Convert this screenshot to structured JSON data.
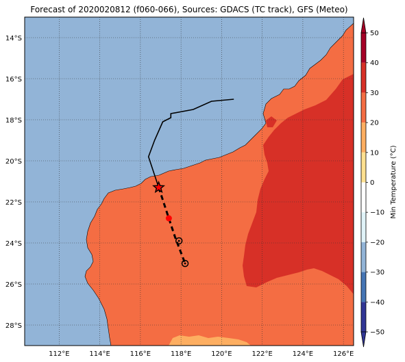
{
  "title": "Forecast of 2020020812 (f060-066), Sources: GDACS (TC track), GFS (Meteo)",
  "map": {
    "lon_range": [
      110.3,
      126.5
    ],
    "lat_range": [
      -29.0,
      -13.0
    ],
    "lon_ticks": [
      {
        "value": 112,
        "label": "112°E"
      },
      {
        "value": 114,
        "label": "114°E"
      },
      {
        "value": 116,
        "label": "116°E"
      },
      {
        "value": 118,
        "label": "118°E"
      },
      {
        "value": 120,
        "label": "120°E"
      },
      {
        "value": 122,
        "label": "122°E"
      },
      {
        "value": 124,
        "label": "124°E"
      },
      {
        "value": 126,
        "label": "126°E"
      }
    ],
    "lat_ticks": [
      {
        "value": -14,
        "label": "14°S"
      },
      {
        "value": -16,
        "label": "16°S"
      },
      {
        "value": -18,
        "label": "18°S"
      },
      {
        "value": -20,
        "label": "20°S"
      },
      {
        "value": -22,
        "label": "22°S"
      },
      {
        "value": -24,
        "label": "24°S"
      },
      {
        "value": -26,
        "label": "26°S"
      },
      {
        "value": -28,
        "label": "28°S"
      }
    ],
    "ocean_color": "#92b4d7",
    "land_color": "#f46d43",
    "hot_color": "#d73027",
    "cool_color": "#fdae61",
    "track_color": "#000000",
    "past_track": [
      [
        120.6,
        -17.0
      ],
      [
        119.5,
        -17.1
      ],
      [
        118.6,
        -17.5
      ],
      [
        117.5,
        -17.7
      ],
      [
        117.5,
        -17.9
      ],
      [
        117.1,
        -18.1
      ],
      [
        116.7,
        -19.0
      ],
      [
        116.4,
        -19.8
      ],
      [
        116.9,
        -21.3
      ]
    ],
    "forecast_track": [
      [
        116.9,
        -21.3
      ],
      [
        117.3,
        -22.5
      ],
      [
        117.7,
        -23.7
      ],
      [
        118.2,
        -25.0
      ]
    ],
    "current_position": [
      116.9,
      -21.3
    ],
    "forecast_points": [
      {
        "lon": 117.4,
        "lat": -22.8,
        "color": "#ff0000",
        "kind": "dot"
      },
      {
        "lon": 117.9,
        "lat": -23.9,
        "color": "#000000",
        "kind": "ring"
      },
      {
        "lon": 118.2,
        "lat": -25.0,
        "color": "#000000",
        "kind": "ring"
      }
    ]
  },
  "colorbar": {
    "label": "Min Temperature (°C)",
    "min": -50,
    "max": 50,
    "ticks": [
      "50",
      "40",
      "30",
      "20",
      "10",
      "0",
      "−10",
      "−20",
      "−30",
      "−40",
      "−50"
    ],
    "bands": [
      {
        "from": 40,
        "to": 50,
        "color": "#a50026"
      },
      {
        "from": 30,
        "to": 40,
        "color": "#d73027"
      },
      {
        "from": 20,
        "to": 30,
        "color": "#f46d43"
      },
      {
        "from": 10,
        "to": 20,
        "color": "#fdae61"
      },
      {
        "from": 0,
        "to": 10,
        "color": "#fee090"
      },
      {
        "from": -10,
        "to": 0,
        "color": "#ffffff"
      },
      {
        "from": -20,
        "to": -10,
        "color": "#e0f3f8"
      },
      {
        "from": -30,
        "to": -20,
        "color": "#92b4d7"
      },
      {
        "from": -40,
        "to": -30,
        "color": "#4575b4"
      },
      {
        "from": -50,
        "to": -40,
        "color": "#313695"
      }
    ]
  }
}
